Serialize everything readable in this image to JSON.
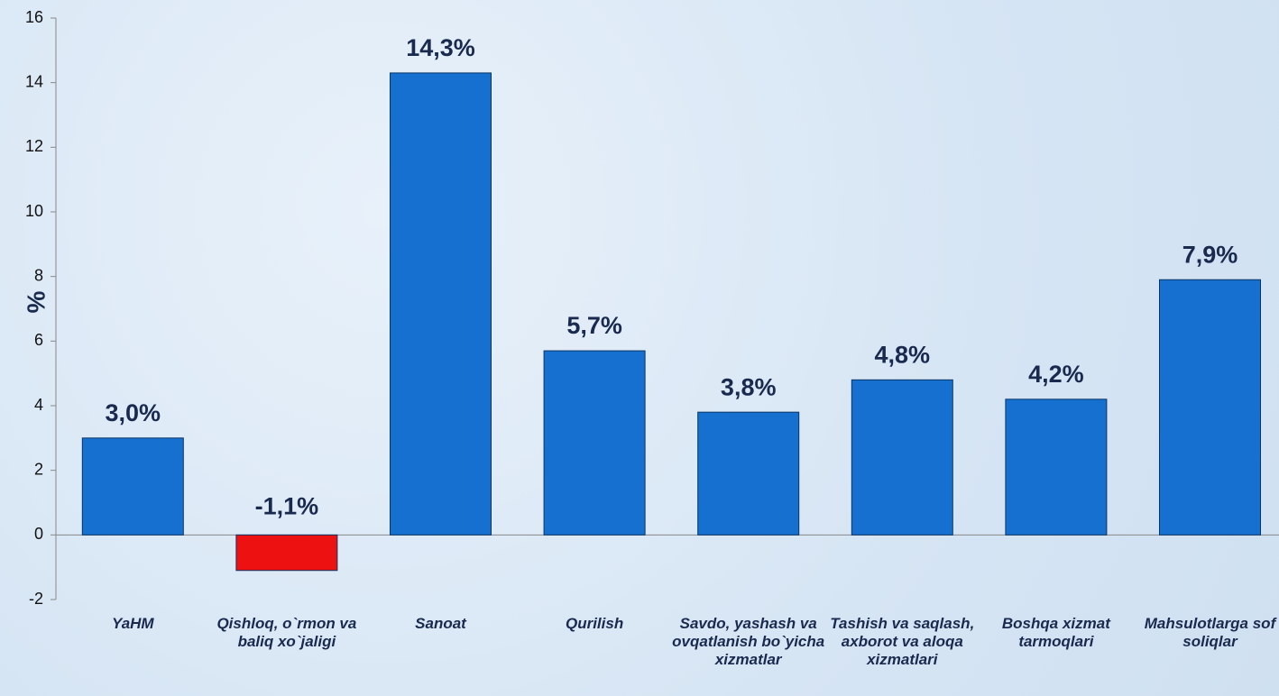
{
  "chart_data": {
    "type": "bar",
    "y_label": "%",
    "categories": [
      "YaHM",
      "Qishloq, o`rmon va baliq xo`jaligi",
      "Sanoat",
      "Qurilish",
      "Savdo, yashash va ovqatlanish bo`yicha xizmatlar",
      "Tashish va saqlash, axborot va aloqa xizmatlari",
      "Boshqa xizmat tarmoqlari",
      "Mahsulotlarga sof soliqlar"
    ],
    "values": [
      3.0,
      -1.1,
      14.3,
      5.7,
      3.8,
      4.8,
      4.2,
      7.9
    ],
    "value_labels": [
      "3,0%",
      "-1,1%",
      "14,3%",
      "5,7%",
      "3,8%",
      "4,8%",
      "4,2%",
      "7,9%"
    ],
    "colors": [
      "#1570cf",
      "#ee1111",
      "#1570cf",
      "#1570cf",
      "#1570cf",
      "#1570cf",
      "#1570cf",
      "#1570cf"
    ],
    "ylim": [
      -2,
      16
    ],
    "yticks": [
      -2,
      0,
      2,
      4,
      6,
      8,
      10,
      12,
      14,
      16
    ],
    "grid": false
  }
}
